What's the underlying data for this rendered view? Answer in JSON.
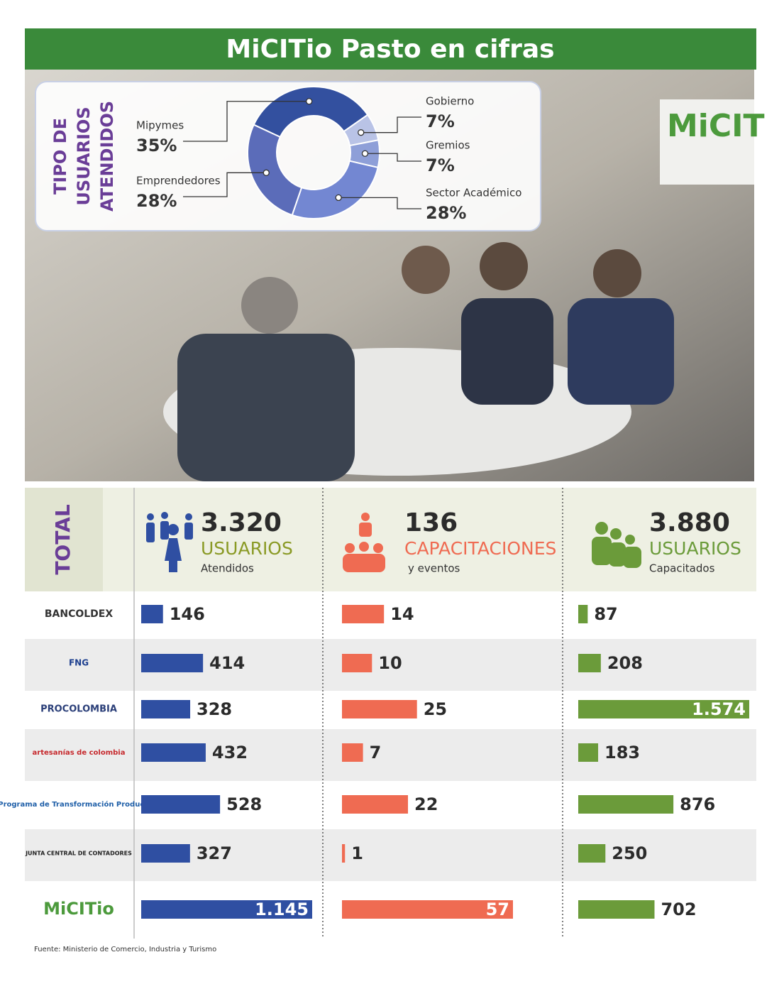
{
  "title": "MiCITio Pasto en cifras",
  "source": "Fuente: Ministerio de Comercio, Industria y Turismo",
  "chart_data": [
    {
      "type": "pie",
      "title": [
        "TIPO DE",
        "USUARIOS",
        "ATENDIDOS"
      ],
      "categories": [
        "Mipymes",
        "Gobierno",
        "Gremios",
        "Sector Académico",
        "Emprendedores"
      ],
      "values": [
        35,
        7,
        7,
        28,
        28
      ],
      "value_labels": [
        "35%",
        "7%",
        "7%",
        "28%",
        "28%"
      ],
      "colors": [
        "#33509f",
        "#b9c3e6",
        "#8e9fd8",
        "#7387d2",
        "#5b6cb9"
      ]
    },
    {
      "type": "bar",
      "total_label": "TOTAL",
      "categories": [
        "BANCOLDEX",
        "FNG",
        "PROCOLOMBIA",
        "artesanías de colombia",
        "Programa de Transformación Productiva",
        "JUNTA CENTRAL DE CONTADORES",
        "MiCITio"
      ],
      "series": [
        {
          "name": "USUARIOS",
          "total": {
            "value": 3320,
            "label": "3.320"
          },
          "subtitle": "Atendidos",
          "color": "#2f4fa2",
          "values": [
            146,
            414,
            328,
            432,
            528,
            327,
            1145
          ],
          "value_labels": [
            "146",
            "414",
            "328",
            "432",
            "528",
            "327",
            "1.145"
          ],
          "xlim": [
            0,
            1145
          ]
        },
        {
          "name": "CAPACITACIONES",
          "total": 136,
          "subtitle": "y eventos",
          "color": "#ef6b52",
          "values": [
            14,
            10,
            25,
            7,
            22,
            1,
            57
          ],
          "value_labels": [
            "14",
            "10",
            "25",
            "7",
            "22",
            "1",
            "57"
          ],
          "xlim": [
            0,
            57
          ]
        },
        {
          "name": "USUARIOS",
          "total": {
            "value": 3880,
            "label": "3.880"
          },
          "subtitle": "Capacitados",
          "color": "#6b9b3a",
          "values": [
            87,
            208,
            1574,
            183,
            876,
            250,
            702
          ],
          "value_labels": [
            "87",
            "208",
            "1.574",
            "183",
            "876",
            "250",
            "702"
          ],
          "xlim": [
            0,
            1574
          ]
        }
      ]
    }
  ]
}
